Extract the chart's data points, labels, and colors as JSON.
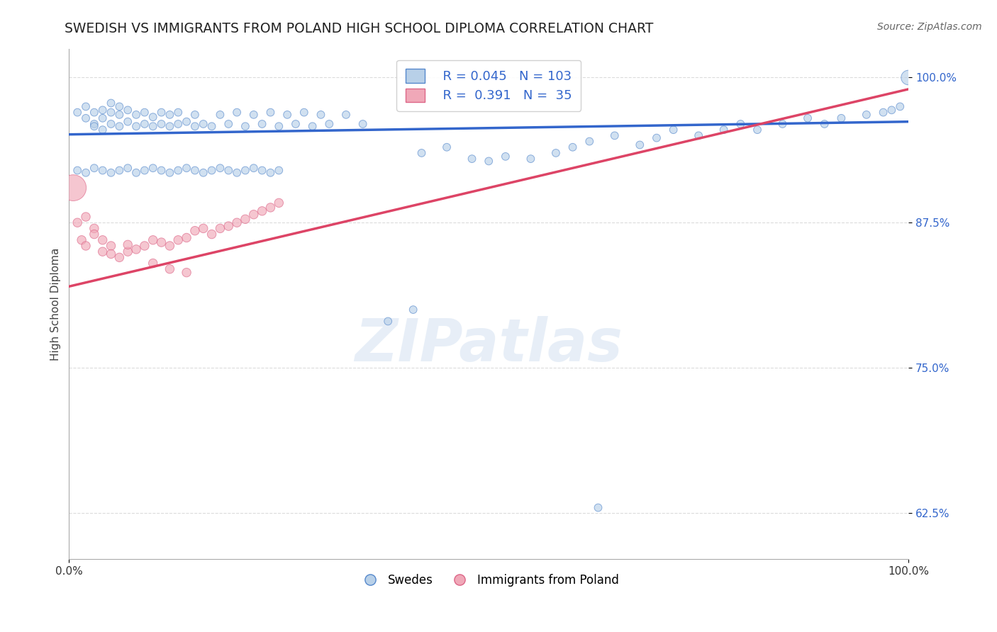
{
  "title": "SWEDISH VS IMMIGRANTS FROM POLAND HIGH SCHOOL DIPLOMA CORRELATION CHART",
  "source": "Source: ZipAtlas.com",
  "ylabel": "High School Diploma",
  "xlim": [
    0.0,
    1.0
  ],
  "ylim": [
    0.585,
    1.025
  ],
  "yticks": [
    0.625,
    0.75,
    0.875,
    1.0
  ],
  "ytick_labels": [
    "62.5%",
    "75.0%",
    "87.5%",
    "100.0%"
  ],
  "xticks": [
    0.0,
    1.0
  ],
  "xtick_labels": [
    "0.0%",
    "100.0%"
  ],
  "legend_r_blue": "R = 0.045",
  "legend_n_blue": "N = 103",
  "legend_r_pink": "R =  0.391",
  "legend_n_pink": "N =  35",
  "blue_fill": "#b8d0e8",
  "blue_edge": "#5588cc",
  "pink_fill": "#f0a8b8",
  "pink_edge": "#dd6688",
  "blue_line": "#3366cc",
  "pink_line": "#dd4466",
  "watermark_color": "#d0dff0",
  "background_color": "#ffffff",
  "grid_color": "#cccccc",
  "title_color": "#222222",
  "accent_color": "#3366cc",
  "blue_scatter_x": [
    0.01,
    0.02,
    0.02,
    0.03,
    0.03,
    0.03,
    0.04,
    0.04,
    0.04,
    0.05,
    0.05,
    0.05,
    0.06,
    0.06,
    0.06,
    0.07,
    0.07,
    0.08,
    0.08,
    0.09,
    0.09,
    0.1,
    0.1,
    0.11,
    0.11,
    0.12,
    0.12,
    0.13,
    0.13,
    0.14,
    0.15,
    0.15,
    0.16,
    0.17,
    0.18,
    0.19,
    0.2,
    0.21,
    0.22,
    0.23,
    0.24,
    0.25,
    0.26,
    0.27,
    0.28,
    0.29,
    0.3,
    0.31,
    0.33,
    0.35,
    0.38,
    0.41,
    0.42,
    0.45,
    0.48,
    0.5,
    0.52,
    0.55,
    0.58,
    0.6,
    0.62,
    0.65,
    0.68,
    0.7,
    0.72,
    0.75,
    0.78,
    0.8,
    0.82,
    0.85,
    0.88,
    0.9,
    0.92,
    0.95,
    0.97,
    0.98,
    0.99,
    1.0,
    0.01,
    0.02,
    0.03,
    0.04,
    0.05,
    0.06,
    0.07,
    0.08,
    0.09,
    0.1,
    0.11,
    0.12,
    0.13,
    0.14,
    0.15,
    0.16,
    0.17,
    0.18,
    0.19,
    0.2,
    0.21,
    0.22,
    0.23,
    0.24,
    0.25
  ],
  "blue_scatter_y": [
    0.97,
    0.965,
    0.975,
    0.96,
    0.97,
    0.958,
    0.955,
    0.965,
    0.972,
    0.96,
    0.97,
    0.978,
    0.958,
    0.968,
    0.975,
    0.962,
    0.972,
    0.958,
    0.968,
    0.96,
    0.97,
    0.958,
    0.966,
    0.96,
    0.97,
    0.958,
    0.968,
    0.96,
    0.97,
    0.962,
    0.958,
    0.968,
    0.96,
    0.958,
    0.968,
    0.96,
    0.97,
    0.958,
    0.968,
    0.96,
    0.97,
    0.958,
    0.968,
    0.96,
    0.97,
    0.958,
    0.968,
    0.96,
    0.968,
    0.96,
    0.79,
    0.8,
    0.935,
    0.94,
    0.93,
    0.928,
    0.932,
    0.93,
    0.935,
    0.94,
    0.945,
    0.95,
    0.942,
    0.948,
    0.955,
    0.95,
    0.955,
    0.96,
    0.955,
    0.96,
    0.965,
    0.96,
    0.965,
    0.968,
    0.97,
    0.972,
    0.975,
    1.0,
    0.92,
    0.918,
    0.922,
    0.92,
    0.918,
    0.92,
    0.922,
    0.918,
    0.92,
    0.922,
    0.92,
    0.918,
    0.92,
    0.922,
    0.92,
    0.918,
    0.92,
    0.922,
    0.92,
    0.918,
    0.92,
    0.922,
    0.92,
    0.918,
    0.92
  ],
  "blue_scatter_size": [
    60,
    60,
    60,
    60,
    60,
    60,
    60,
    60,
    60,
    60,
    60,
    60,
    60,
    60,
    60,
    60,
    60,
    60,
    60,
    60,
    60,
    60,
    60,
    60,
    60,
    60,
    60,
    60,
    60,
    60,
    60,
    60,
    60,
    60,
    60,
    60,
    60,
    60,
    60,
    60,
    60,
    60,
    60,
    60,
    60,
    60,
    60,
    60,
    60,
    60,
    60,
    60,
    60,
    60,
    60,
    60,
    60,
    60,
    60,
    60,
    60,
    60,
    60,
    60,
    60,
    60,
    60,
    60,
    60,
    60,
    60,
    60,
    60,
    60,
    60,
    60,
    60,
    220,
    60,
    60,
    60,
    60,
    60,
    60,
    60,
    60,
    60,
    60,
    60,
    60,
    60,
    60,
    60,
    60,
    60,
    60,
    60,
    60,
    60,
    60,
    60,
    60,
    60
  ],
  "blue_outlier_x": [
    0.63
  ],
  "blue_outlier_y": [
    0.63
  ],
  "pink_scatter_x": [
    0.005,
    0.01,
    0.015,
    0.02,
    0.02,
    0.03,
    0.03,
    0.04,
    0.04,
    0.05,
    0.05,
    0.06,
    0.07,
    0.07,
    0.08,
    0.09,
    0.1,
    0.11,
    0.12,
    0.13,
    0.14,
    0.15,
    0.16,
    0.17,
    0.18,
    0.19,
    0.2,
    0.21,
    0.22,
    0.23,
    0.24,
    0.25,
    0.1,
    0.12,
    0.14
  ],
  "pink_scatter_y": [
    0.905,
    0.875,
    0.86,
    0.88,
    0.855,
    0.87,
    0.865,
    0.86,
    0.85,
    0.855,
    0.848,
    0.845,
    0.85,
    0.856,
    0.852,
    0.855,
    0.86,
    0.858,
    0.855,
    0.86,
    0.862,
    0.868,
    0.87,
    0.865,
    0.87,
    0.872,
    0.875,
    0.878,
    0.882,
    0.885,
    0.888,
    0.892,
    0.84,
    0.835,
    0.832
  ],
  "pink_scatter_size": [
    700,
    80,
    80,
    80,
    80,
    80,
    80,
    80,
    80,
    80,
    80,
    80,
    80,
    80,
    80,
    80,
    80,
    80,
    80,
    80,
    80,
    80,
    80,
    80,
    80,
    80,
    80,
    80,
    80,
    80,
    80,
    80,
    80,
    80,
    80
  ],
  "blue_trend_x": [
    0.0,
    1.0
  ],
  "blue_trend_y": [
    0.951,
    0.962
  ],
  "pink_trend_x": [
    0.0,
    1.0
  ],
  "pink_trend_y": [
    0.82,
    0.99
  ]
}
